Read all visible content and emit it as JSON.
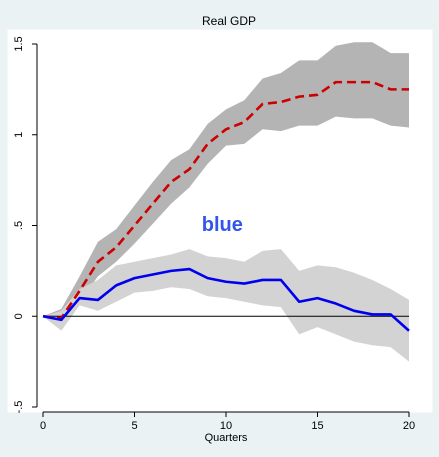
{
  "chart_data": {
    "type": "line",
    "title": "Real GDP",
    "xlabel": "Quarters",
    "ylabel": "",
    "xlim": [
      0,
      20
    ],
    "ylim": [
      -0.5,
      1.5
    ],
    "xticks": [
      0,
      5,
      10,
      15,
      20
    ],
    "yticks": [
      -0.5,
      0,
      0.5,
      1,
      1.5
    ],
    "xtick_labels": [
      "0",
      "5",
      "10",
      "15",
      "20"
    ],
    "ytick_labels": [
      "-.5",
      "0",
      ".5",
      "1",
      "1.5"
    ],
    "grid": false,
    "zero_line": 0,
    "x": [
      0,
      1,
      2,
      3,
      4,
      5,
      6,
      7,
      8,
      9,
      10,
      11,
      12,
      13,
      14,
      15,
      16,
      17,
      18,
      19,
      20
    ],
    "series": [
      {
        "color": "#cc0000",
        "line_style": "dashed",
        "band_color": "#b4b4b4",
        "values": [
          0,
          -0.01,
          0.14,
          0.3,
          0.38,
          0.5,
          0.62,
          0.74,
          0.81,
          0.95,
          1.03,
          1.07,
          1.17,
          1.18,
          1.21,
          1.22,
          1.29,
          1.29,
          1.29,
          1.25,
          1.25
        ],
        "upper": [
          0,
          0.04,
          0.22,
          0.41,
          0.48,
          0.61,
          0.74,
          0.86,
          0.92,
          1.06,
          1.14,
          1.19,
          1.31,
          1.34,
          1.41,
          1.41,
          1.49,
          1.51,
          1.51,
          1.45,
          1.45
        ],
        "lower": [
          0,
          -0.06,
          0.08,
          0.22,
          0.3,
          0.4,
          0.51,
          0.62,
          0.71,
          0.84,
          0.94,
          0.95,
          1.03,
          1.02,
          1.05,
          1.05,
          1.1,
          1.09,
          1.09,
          1.05,
          1.04
        ]
      },
      {
        "color": "#0000ee",
        "line_style": "solid",
        "band_color": "#d3d3d3",
        "values": [
          0,
          -0.02,
          0.1,
          0.09,
          0.17,
          0.21,
          0.23,
          0.25,
          0.26,
          0.21,
          0.19,
          0.18,
          0.2,
          0.2,
          0.08,
          0.1,
          0.07,
          0.03,
          0.01,
          0.01,
          -0.08
        ],
        "upper": [
          0,
          0.03,
          0.15,
          0.2,
          0.28,
          0.3,
          0.32,
          0.34,
          0.37,
          0.33,
          0.32,
          0.3,
          0.36,
          0.37,
          0.25,
          0.28,
          0.27,
          0.24,
          0.2,
          0.15,
          0.09
        ],
        "lower": [
          0,
          -0.08,
          0.06,
          0.03,
          0.08,
          0.13,
          0.14,
          0.16,
          0.15,
          0.11,
          0.1,
          0.08,
          0.06,
          0.05,
          -0.1,
          -0.06,
          -0.1,
          -0.14,
          -0.16,
          -0.17,
          -0.25
        ]
      }
    ],
    "annotations": [
      {
        "text": "blue",
        "x": 9.8,
        "y": 0.47,
        "color": "#3355ee"
      }
    ]
  }
}
